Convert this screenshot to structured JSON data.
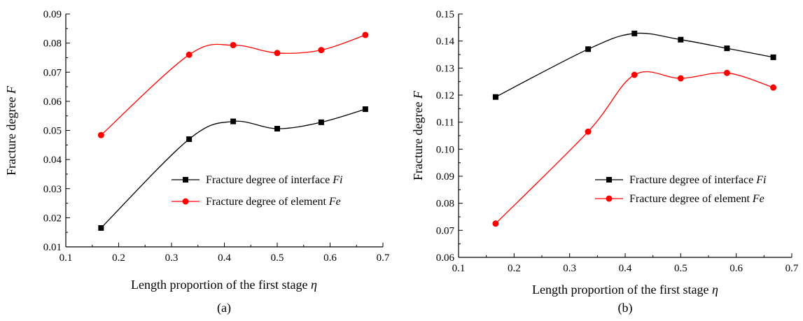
{
  "chart_data": [
    {
      "type": "line",
      "panel_label": "(a)",
      "xlabel": "Length proportion of the first stage",
      "xlabel_symbol": "η",
      "ylabel": "Fracture degree",
      "ylabel_symbol": "F",
      "xlim": [
        0.1,
        0.7
      ],
      "ylim": [
        0.01,
        0.09
      ],
      "xticks": [
        "0.1",
        "0.2",
        "0.3",
        "0.4",
        "0.5",
        "0.6",
        "0.7"
      ],
      "yticks": [
        "0.01",
        "0.02",
        "0.03",
        "0.04",
        "0.05",
        "0.06",
        "0.07",
        "0.08",
        "0.09"
      ],
      "legend_position": "lower-right",
      "x": [
        0.1667,
        0.3333,
        0.4167,
        0.5,
        0.5833,
        0.6667
      ],
      "series": [
        {
          "name": "Fracture degree of interface",
          "symbol": "Fi",
          "marker": "square",
          "color": "#000000",
          "values": [
            0.0165,
            0.047,
            0.0531,
            0.0506,
            0.0528,
            0.0573
          ]
        },
        {
          "name": "Fracture degree of element",
          "symbol": "Fe",
          "marker": "circle",
          "color": "#ff0000",
          "values": [
            0.0484,
            0.076,
            0.0793,
            0.0766,
            0.0776,
            0.0828
          ]
        }
      ]
    },
    {
      "type": "line",
      "panel_label": "(b)",
      "xlabel": "Length proportion of the first stage",
      "xlabel_symbol": "η",
      "ylabel": "Fracture degree",
      "ylabel_symbol": "F",
      "xlim": [
        0.1,
        0.7
      ],
      "ylim": [
        0.06,
        0.15
      ],
      "xticks": [
        "0.1",
        "0.2",
        "0.3",
        "0.4",
        "0.5",
        "0.6",
        "0.7"
      ],
      "yticks": [
        "0.06",
        "0.07",
        "0.08",
        "0.09",
        "0.10",
        "0.11",
        "0.12",
        "0.13",
        "0.14",
        "0.15"
      ],
      "legend_position": "center-right",
      "x": [
        0.1667,
        0.3333,
        0.4167,
        0.5,
        0.5833,
        0.6667
      ],
      "series": [
        {
          "name": "Fracture degree of interface",
          "symbol": "Fi",
          "marker": "square",
          "color": "#000000",
          "values": [
            0.1193,
            0.137,
            0.1428,
            0.1405,
            0.1373,
            0.134
          ]
        },
        {
          "name": "Fracture degree of element",
          "symbol": "Fe",
          "marker": "circle",
          "color": "#ff0000",
          "values": [
            0.0725,
            0.1065,
            0.1275,
            0.1262,
            0.1282,
            0.1228
          ]
        }
      ]
    }
  ]
}
